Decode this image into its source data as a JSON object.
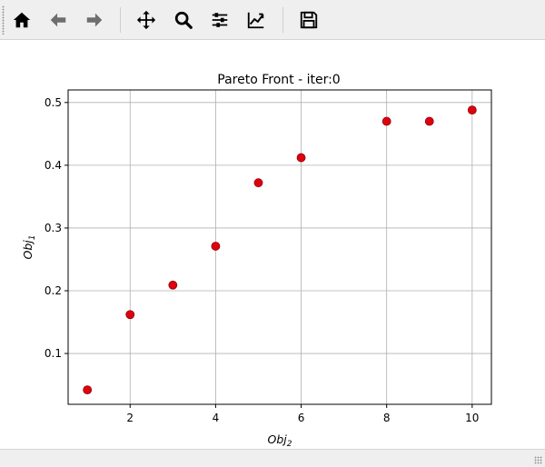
{
  "toolbar": {
    "buttons": [
      {
        "name": "home",
        "icon": "home-icon"
      },
      {
        "name": "back",
        "icon": "arrow-left-icon"
      },
      {
        "name": "forward",
        "icon": "arrow-right-icon"
      },
      {
        "name": "pan",
        "icon": "move-arrows-icon"
      },
      {
        "name": "zoom",
        "icon": "magnifier-icon"
      },
      {
        "name": "configure",
        "icon": "sliders-icon"
      },
      {
        "name": "edit-axes",
        "icon": "line-chart-icon"
      },
      {
        "name": "save",
        "icon": "floppy-disk-icon"
      }
    ]
  },
  "colors": {
    "marker": "#e0000f",
    "marker_edge": "#8b0000",
    "grid": "#b0b0b0",
    "axes": "#000000"
  },
  "chart_data": {
    "type": "scatter",
    "title": "Pareto Front - iter:0",
    "xlabel_base": "Obj",
    "xlabel_sub": "2",
    "ylabel_base": "Obj",
    "ylabel_sub": "1",
    "xlim": [
      0.55,
      10.45
    ],
    "ylim": [
      0.019,
      0.52
    ],
    "xticks": [
      2,
      4,
      6,
      8,
      10
    ],
    "yticks": [
      0.1,
      0.2,
      0.3,
      0.4,
      0.5
    ],
    "xtick_labels": [
      "2",
      "4",
      "6",
      "8",
      "10"
    ],
    "ytick_labels": [
      "0.1",
      "0.2",
      "0.3",
      "0.4",
      "0.5"
    ],
    "grid": true,
    "points": [
      {
        "x": 1,
        "y": 0.042
      },
      {
        "x": 2,
        "y": 0.162
      },
      {
        "x": 3,
        "y": 0.209
      },
      {
        "x": 4,
        "y": 0.271
      },
      {
        "x": 5,
        "y": 0.372
      },
      {
        "x": 6,
        "y": 0.412
      },
      {
        "x": 8,
        "y": 0.47
      },
      {
        "x": 9,
        "y": 0.47
      },
      {
        "x": 10,
        "y": 0.488
      }
    ]
  }
}
